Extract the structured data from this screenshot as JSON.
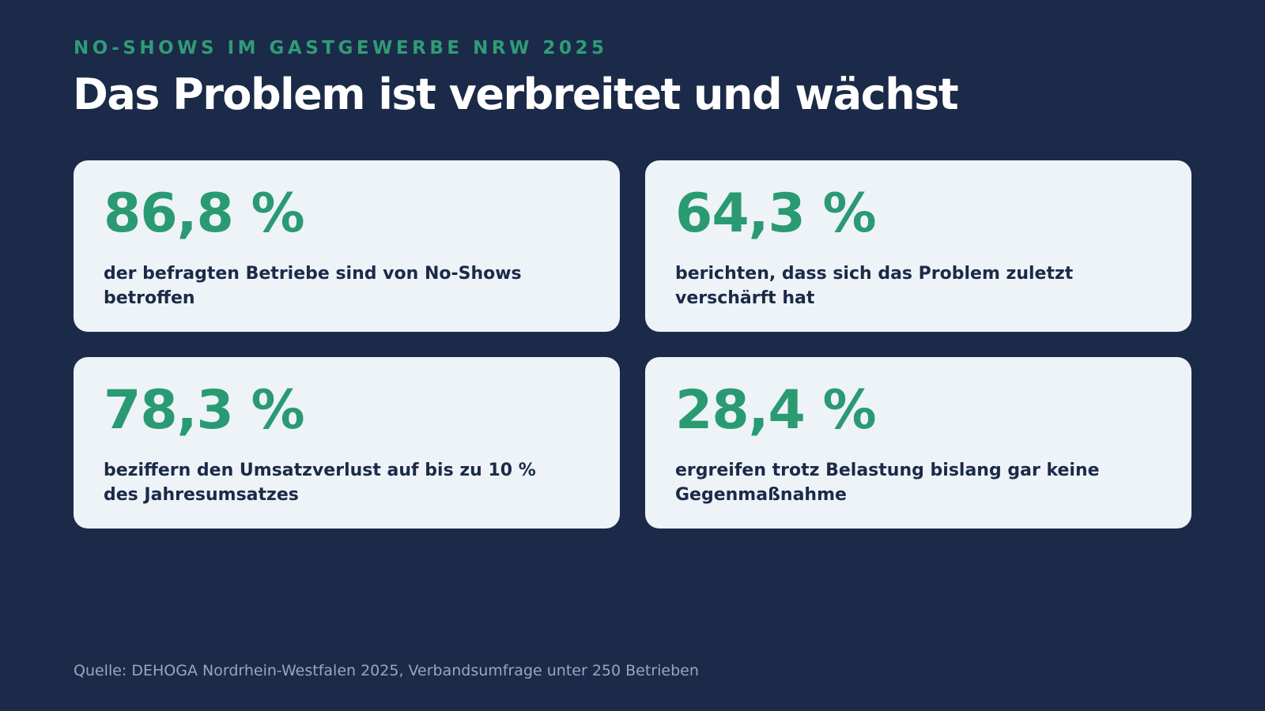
{
  "header": {
    "eyebrow": "NO-SHOWS IM GASTGEWERBE NRW 2025",
    "title": "Das Problem ist verbreitet und wächst"
  },
  "stats": [
    {
      "value": "86,8 %",
      "text": "der befragten Betriebe sind von No-Shows betroffen"
    },
    {
      "value": "64,3 %",
      "text": "berichten, dass sich das Problem zuletzt verschärft hat"
    },
    {
      "value": "78,3 %",
      "text": "beziffern den Umsatzverlust auf bis zu 10 % des Jahresumsatzes"
    },
    {
      "value": "28,4 %",
      "text": "ergreifen trotz Belastung bislang gar keine Gegenmaßnahme"
    }
  ],
  "footer": {
    "source": "Quelle: DEHOGA Nordrhein-Westfalen 2025, Verbandsumfrage unter 250 Betrieben"
  },
  "colors": {
    "background": "#1b2a48",
    "accent": "#2a9a72",
    "card": "#eef3f8"
  }
}
